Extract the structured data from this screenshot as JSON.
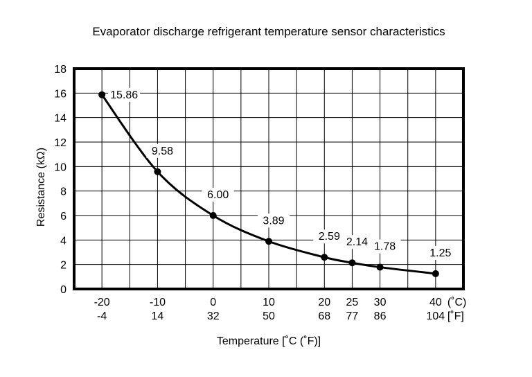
{
  "chart_data": {
    "type": "line",
    "title": "Evaporator discharge refrigerant temperature sensor characteristics",
    "xlabel": "Temperature [˚C (˚F)]",
    "ylabel": "Resistance (kΩ)",
    "ylim": [
      0,
      18
    ],
    "yticks": [
      "0",
      "2",
      "4",
      "6",
      "8",
      "10",
      "12",
      "14",
      "16",
      "18"
    ],
    "xlim_c": [
      -25,
      45
    ],
    "grid": true,
    "x_ticks": [
      {
        "c": -20,
        "c_label": "-20",
        "f_label": "-4"
      },
      {
        "c": -10,
        "c_label": "-10",
        "f_label": "14"
      },
      {
        "c": 0,
        "c_label": "0",
        "f_label": "32"
      },
      {
        "c": 10,
        "c_label": "10",
        "f_label": "50"
      },
      {
        "c": 20,
        "c_label": "20",
        "f_label": "68"
      },
      {
        "c": 25,
        "c_label": "25",
        "f_label": "77"
      },
      {
        "c": 30,
        "c_label": "30",
        "f_label": "86"
      },
      {
        "c": 40,
        "c_label": "40",
        "f_label": "104"
      }
    ],
    "x_unit_c": "(˚C)",
    "x_unit_f": "[˚F]",
    "series": [
      {
        "points": [
          {
            "x": -20,
            "y": 15.86,
            "label": "15.86"
          },
          {
            "x": -10,
            "y": 9.58,
            "label": "9.58"
          },
          {
            "x": 0,
            "y": 6.0,
            "label": "6.00"
          },
          {
            "x": 10,
            "y": 3.89,
            "label": "3.89"
          },
          {
            "x": 20,
            "y": 2.59,
            "label": "2.59"
          },
          {
            "x": 25,
            "y": 2.14,
            "label": "2.14"
          },
          {
            "x": 30,
            "y": 1.78,
            "label": "1.78"
          },
          {
            "x": 40,
            "y": 1.25,
            "label": "1.25"
          }
        ]
      }
    ]
  }
}
